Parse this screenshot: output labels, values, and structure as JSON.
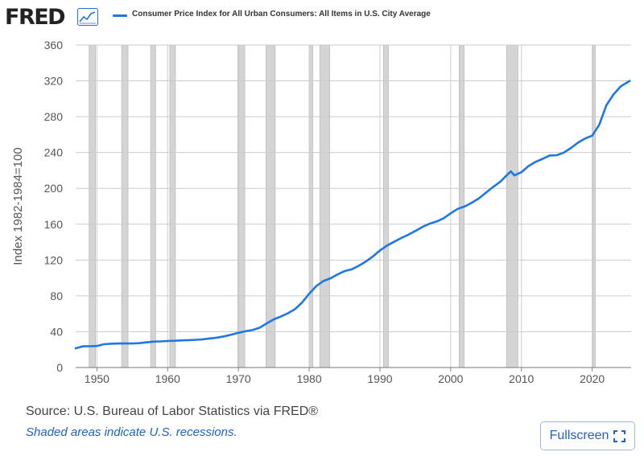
{
  "header": {
    "logo_text": "FRED",
    "logo_icon": "line-chart-icon",
    "legend_label": "Consumer Price Index for All Urban Consumers: All Items in U.S. City Average"
  },
  "footer": {
    "source": "U.S. Bureau of Labor Statistics via FRED®",
    "source_prefix": "Source: ",
    "note": "Shaded areas indicate U.S. recessions.",
    "fullscreen_label": "Fullscreen",
    "fullscreen_icon": "expand-icon"
  },
  "colors": {
    "series": "#1f77e0",
    "recession": "#d4d4d4",
    "grid": "#cccccc",
    "accent": "#1f62c9"
  },
  "chart_data": {
    "type": "line",
    "title": "",
    "xlabel": "",
    "ylabel": "Index 1982-1984=100",
    "xlim": [
      1947,
      2025.5
    ],
    "ylim": [
      0,
      360
    ],
    "x_ticks": [
      1950,
      1960,
      1970,
      1980,
      1990,
      2000,
      2010,
      2020
    ],
    "y_ticks": [
      0,
      40,
      80,
      120,
      160,
      200,
      240,
      280,
      320,
      360
    ],
    "grid": true,
    "legend": "top",
    "recessions": [
      [
        1948.9,
        1949.8
      ],
      [
        1953.5,
        1954.4
      ],
      [
        1957.6,
        1958.3
      ],
      [
        1960.3,
        1961.1
      ],
      [
        1969.9,
        1970.9
      ],
      [
        1973.9,
        1975.2
      ],
      [
        1980.0,
        1980.5
      ],
      [
        1981.5,
        1982.9
      ],
      [
        1990.5,
        1991.2
      ],
      [
        2001.2,
        2001.9
      ],
      [
        2007.9,
        2009.5
      ],
      [
        2020.1,
        2020.4
      ]
    ],
    "series": [
      {
        "x": [
          1947,
          1948,
          1949,
          1950,
          1951,
          1952,
          1953,
          1954,
          1955,
          1956,
          1957,
          1958,
          1959,
          1960,
          1961,
          1962,
          1963,
          1964,
          1965,
          1966,
          1967,
          1968,
          1969,
          1970,
          1971,
          1972,
          1973,
          1974,
          1975,
          1976,
          1977,
          1978,
          1979,
          1980,
          1981,
          1982,
          1983,
          1984,
          1985,
          1986,
          1987,
          1988,
          1989,
          1990,
          1991,
          1992,
          1993,
          1994,
          1995,
          1996,
          1997,
          1998,
          1999,
          2000,
          2001,
          2002,
          2003,
          2004,
          2005,
          2006,
          2007,
          2008,
          2008.5,
          2009,
          2010,
          2011,
          2012,
          2013,
          2014,
          2015,
          2016,
          2017,
          2018,
          2019,
          2020,
          2021,
          2022,
          2023,
          2024,
          2025.3
        ],
        "values": [
          21.5,
          23.7,
          23.8,
          24.1,
          26.0,
          26.6,
          26.8,
          26.9,
          26.8,
          27.2,
          28.1,
          28.9,
          29.2,
          29.6,
          29.9,
          30.3,
          30.6,
          31.0,
          31.5,
          32.5,
          33.4,
          34.8,
          36.7,
          38.8,
          40.5,
          41.8,
          44.4,
          49.3,
          53.8,
          56.9,
          60.6,
          65.2,
          72.6,
          82.4,
          90.9,
          96.5,
          99.6,
          103.9,
          107.6,
          109.6,
          113.6,
          118.3,
          124.0,
          130.7,
          136.2,
          140.3,
          144.5,
          148.2,
          152.4,
          156.9,
          160.5,
          163.0,
          166.6,
          172.2,
          177.1,
          179.9,
          184.0,
          188.9,
          195.3,
          201.6,
          207.3,
          215.3,
          219.0,
          214.5,
          218.1,
          224.9,
          229.6,
          233.0,
          236.7,
          237.0,
          240.0,
          245.1,
          251.1,
          255.7,
          258.8,
          270.9,
          292.7,
          304.7,
          313.7,
          320.0
        ]
      }
    ]
  }
}
